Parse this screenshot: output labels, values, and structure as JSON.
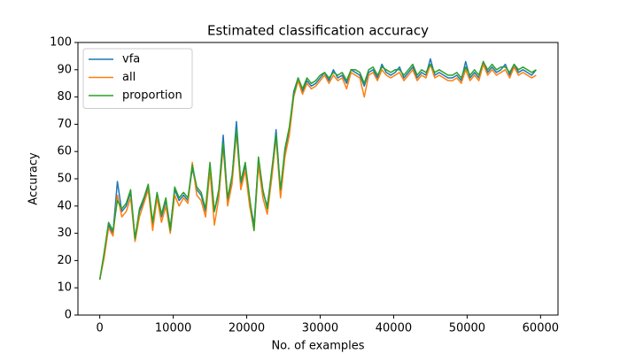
{
  "chart_data": {
    "type": "line",
    "title": "Estimated classification accuracy",
    "x_label": "No. of examples",
    "y_label": "Accuracy",
    "x": [
      0,
      600,
      1200,
      1800,
      2400,
      3000,
      3600,
      4200,
      4800,
      5400,
      6000,
      6600,
      7200,
      7800,
      8400,
      9000,
      9600,
      10200,
      10800,
      11400,
      12000,
      12600,
      13200,
      13800,
      14400,
      15000,
      15600,
      16200,
      16800,
      17400,
      18000,
      18600,
      19200,
      19800,
      20400,
      21000,
      21600,
      22200,
      22800,
      23400,
      24000,
      24600,
      25200,
      25800,
      26400,
      27000,
      27600,
      28200,
      28800,
      29400,
      30000,
      30600,
      31200,
      31800,
      32400,
      33000,
      33600,
      34200,
      34800,
      35400,
      36000,
      36600,
      37200,
      37800,
      38400,
      39000,
      39600,
      40200,
      40800,
      41400,
      42000,
      42600,
      43200,
      43800,
      44400,
      45000,
      45600,
      46200,
      46800,
      47400,
      48000,
      48600,
      49200,
      49800,
      50400,
      51000,
      51600,
      52200,
      52800,
      53400,
      54000,
      54600,
      55200,
      55800,
      56400,
      57000,
      57600,
      58200,
      58800,
      59400
    ],
    "series": [
      {
        "name": "vfa",
        "color": "#1f77b4",
        "values": [
          13,
          22,
          33,
          30,
          49,
          38,
          40,
          45,
          28,
          38,
          42,
          47,
          33,
          44,
          36,
          42,
          32,
          46,
          42,
          44,
          42,
          54,
          46,
          44,
          38,
          55,
          38,
          45,
          66,
          42,
          50,
          71,
          48,
          55,
          42,
          33,
          57,
          45,
          40,
          52,
          68,
          45,
          60,
          68,
          82,
          87,
          82,
          86,
          84,
          85,
          87,
          89,
          86,
          90,
          87,
          88,
          85,
          90,
          89,
          88,
          84,
          89,
          90,
          87,
          92,
          89,
          88,
          89,
          91,
          87,
          89,
          91,
          87,
          89,
          88,
          94,
          88,
          89,
          88,
          87,
          87,
          88,
          86,
          93,
          87,
          89,
          87,
          93,
          89,
          91,
          89,
          90,
          92,
          88,
          92,
          89,
          90,
          89,
          88,
          90
        ]
      },
      {
        "name": "all",
        "color": "#ff7f0e",
        "values": [
          13,
          21,
          32,
          29,
          44,
          36,
          38,
          43,
          27,
          36,
          41,
          46,
          31,
          43,
          34,
          40,
          30,
          44,
          40,
          43,
          41,
          56,
          44,
          42,
          36,
          53,
          33,
          43,
          62,
          40,
          48,
          67,
          46,
          53,
          40,
          31,
          55,
          43,
          37,
          50,
          65,
          43,
          58,
          66,
          80,
          86,
          81,
          85,
          83,
          84,
          86,
          88,
          85,
          88,
          86,
          87,
          83,
          89,
          88,
          87,
          80,
          88,
          89,
          86,
          90,
          88,
          87,
          88,
          89,
          86,
          88,
          90,
          86,
          88,
          87,
          92,
          87,
          88,
          87,
          86,
          86,
          87,
          85,
          90,
          86,
          88,
          86,
          92,
          88,
          90,
          88,
          89,
          90,
          87,
          91,
          88,
          89,
          88,
          87,
          88
        ]
      },
      {
        "name": "proportion",
        "color": "#2ca02c",
        "values": [
          13,
          23,
          34,
          31,
          42,
          39,
          41,
          46,
          28,
          39,
          43,
          48,
          34,
          45,
          37,
          43,
          31,
          47,
          43,
          45,
          43,
          55,
          47,
          45,
          39,
          56,
          38,
          46,
          63,
          43,
          51,
          68,
          49,
          56,
          43,
          31,
          58,
          46,
          39,
          53,
          66,
          46,
          61,
          69,
          81,
          87,
          83,
          87,
          85,
          86,
          88,
          89,
          87,
          89,
          88,
          89,
          86,
          90,
          90,
          89,
          85,
          90,
          91,
          88,
          91,
          90,
          89,
          90,
          90,
          88,
          90,
          92,
          88,
          90,
          89,
          92,
          89,
          90,
          89,
          88,
          88,
          89,
          87,
          91,
          88,
          90,
          88,
          93,
          90,
          92,
          90,
          91,
          91,
          89,
          92,
          90,
          91,
          90,
          89,
          90
        ]
      }
    ],
    "xlim": [
      -2970,
      62370
    ],
    "xticks": [
      0,
      10000,
      20000,
      30000,
      40000,
      50000,
      60000
    ],
    "ylim": [
      0,
      100
    ],
    "yticks": [
      0,
      10,
      20,
      30,
      40,
      50,
      60,
      70,
      80,
      90,
      100
    ],
    "legend": "upper left"
  }
}
